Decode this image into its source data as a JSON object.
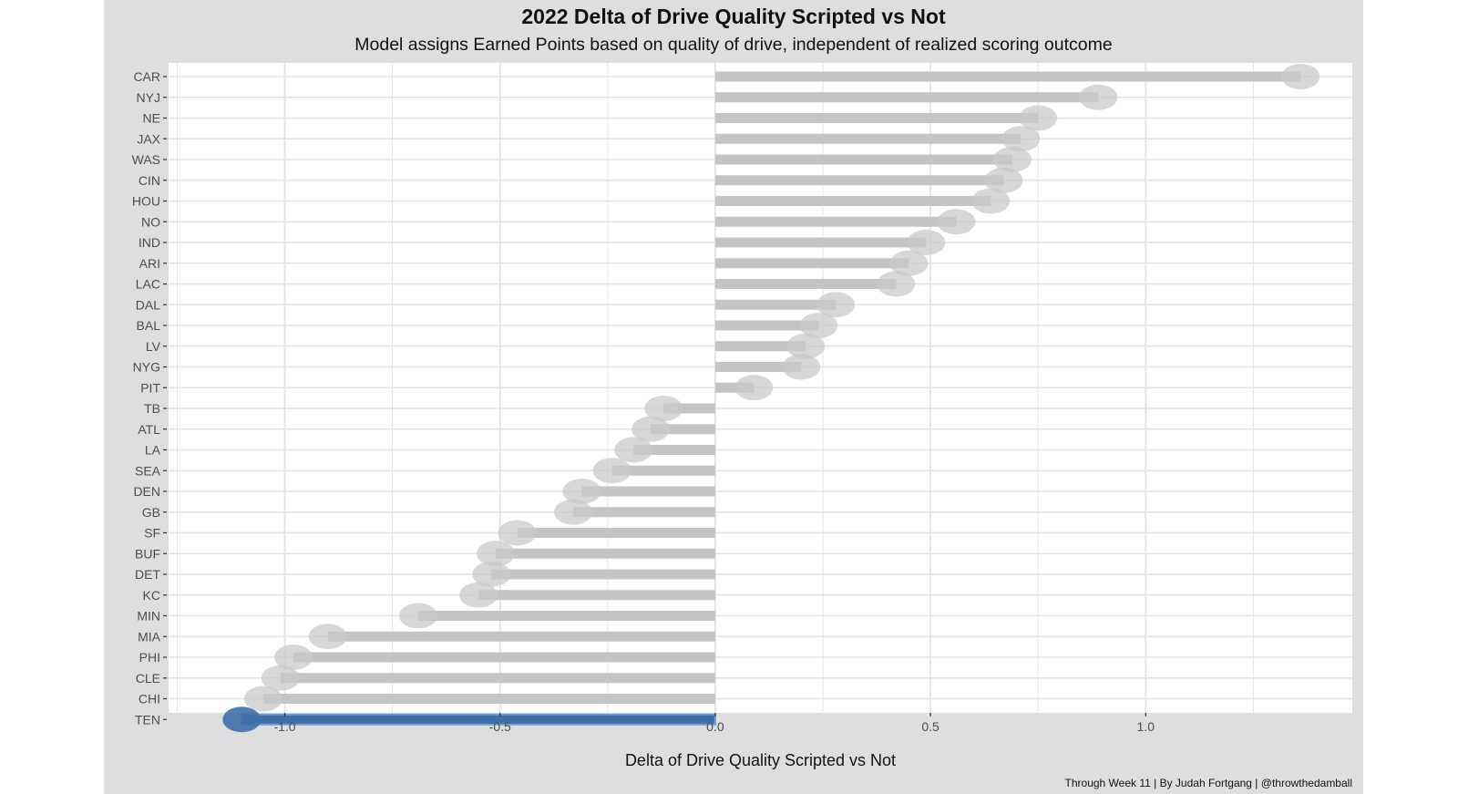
{
  "chart_data": {
    "type": "bar",
    "orientation": "horizontal",
    "title": "2022 Delta of Drive Quality Scripted vs Not",
    "subtitle": "Model assigns Earned Points based on quality of drive, independent of realized scoring outcome",
    "xlabel": "Delta of Drive Quality Scripted vs Not",
    "ylabel": "",
    "caption": "Through Week 11 | By Judah Fortgang | @throwthedamball",
    "xlim": [
      -1.27,
      1.48
    ],
    "xticks": [
      -1.0,
      -0.5,
      0.0,
      0.5,
      1.0
    ],
    "xtick_labels": [
      "-1.0",
      "-0.5",
      "0.0",
      "0.5",
      "1.0"
    ],
    "grid": true,
    "highlight": "TEN",
    "categories": [
      "CAR",
      "NYJ",
      "NE",
      "JAX",
      "WAS",
      "CIN",
      "HOU",
      "NO",
      "IND",
      "ARI",
      "LAC",
      "DAL",
      "BAL",
      "LV",
      "NYG",
      "PIT",
      "TB",
      "ATL",
      "LA",
      "SEA",
      "DEN",
      "GB",
      "SF",
      "BUF",
      "DET",
      "KC",
      "MIN",
      "MIA",
      "PHI",
      "CLE",
      "CHI",
      "TEN"
    ],
    "values": [
      1.36,
      0.89,
      0.75,
      0.71,
      0.69,
      0.67,
      0.64,
      0.56,
      0.49,
      0.45,
      0.42,
      0.28,
      0.24,
      0.21,
      0.2,
      0.09,
      -0.12,
      -0.15,
      -0.19,
      -0.24,
      -0.31,
      -0.33,
      -0.46,
      -0.51,
      -0.52,
      -0.55,
      -0.69,
      -0.9,
      -0.98,
      -1.01,
      -1.05,
      -1.1
    ],
    "colors": {
      "bar": "#c4c4c4",
      "highlight_bar": "#3f6fa8",
      "highlight_outline": "#6c9cd6",
      "plot_background": "#ffffff",
      "figure_background": "#dedede",
      "grid": "#e2e2e2",
      "logo": "#c9c9c9"
    }
  }
}
